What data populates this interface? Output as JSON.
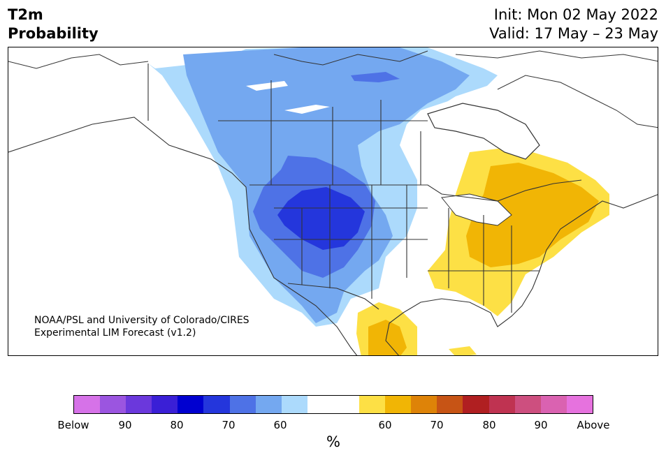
{
  "header": {
    "variable": "T2m",
    "kind": "Probability",
    "init": "Init: Mon 02 May 2022",
    "valid": "Valid: 17 May – 23 May"
  },
  "credit": {
    "line1": "NOAA/PSL and University of Colorado/CIRES",
    "line2": "Experimental LIM Forecast (v1.2)"
  },
  "colorbar": {
    "colors": [
      "#d672e8",
      "#9b55e0",
      "#6b38dc",
      "#3a1fd6",
      "#0000d0",
      "#2436dc",
      "#4e72e6",
      "#74a8f0",
      "#acdafc",
      "#ffffff",
      "#ffffff",
      "#fde045",
      "#f1b505",
      "#de8308",
      "#c75415",
      "#b01f21",
      "#bf3351",
      "#cd4f7f",
      "#da62b1",
      "#e672de"
    ],
    "labels": [
      "Below",
      "90",
      "80",
      "70",
      "60",
      "60",
      "70",
      "80",
      "90",
      "Above"
    ],
    "unit": "%"
  },
  "map_colors": {
    "ocean": "#ffffff",
    "land": "#ffffff",
    "below_50": "#acdafc",
    "below_60": "#74a8f0",
    "below_70": "#4e72e6",
    "below_80": "#2436dc",
    "above_50": "#fde045",
    "above_60": "#f1b505",
    "outline": "#333333"
  }
}
